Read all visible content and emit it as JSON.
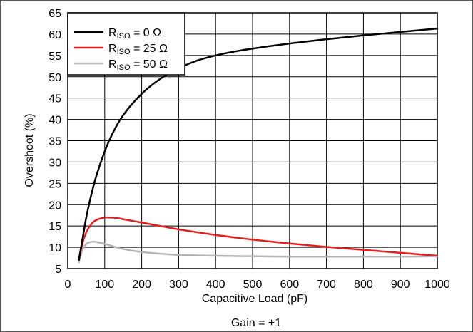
{
  "chart_data": {
    "type": "line",
    "xlabel": "Capacitive Load (pF)",
    "ylabel": "Overshoot (%)",
    "footnote": "Gain = +1",
    "xlim": [
      0,
      1000
    ],
    "ylim": [
      5,
      65
    ],
    "xticks": [
      0,
      100,
      200,
      300,
      400,
      500,
      600,
      700,
      800,
      900,
      1000
    ],
    "yticks": [
      5,
      10,
      15,
      20,
      25,
      30,
      35,
      40,
      45,
      50,
      55,
      60,
      65
    ],
    "grid": true,
    "legend_position": "top-left",
    "series": [
      {
        "name": "R_ISO = 0 Ω",
        "legend": {
          "prefix": "R",
          "sub": "ISO",
          "suffix": " = 0 Ω"
        },
        "color": "#000000",
        "x": [
          30,
          40,
          50,
          60,
          70,
          80,
          100,
          120,
          150,
          200,
          250,
          300,
          350,
          400,
          450,
          500,
          600,
          700,
          800,
          900,
          1000
        ],
        "y": [
          7,
          12,
          17,
          21,
          24.5,
          27.5,
          32.5,
          36.5,
          41,
          46,
          49.5,
          52,
          53.8,
          55,
          55.9,
          56.6,
          57.8,
          58.8,
          59.7,
          60.5,
          61.3
        ]
      },
      {
        "name": "R_ISO = 25 Ω",
        "legend": {
          "prefix": "R",
          "sub": "ISO",
          "suffix": " = 25 Ω"
        },
        "color": "#e81c1c",
        "x": [
          30,
          40,
          50,
          60,
          70,
          80,
          90,
          100,
          110,
          130,
          150,
          200,
          250,
          300,
          400,
          500,
          600,
          700,
          800,
          900,
          1000
        ],
        "y": [
          7,
          11,
          13.5,
          15,
          16,
          16.5,
          16.8,
          17,
          17,
          16.9,
          16.6,
          15.8,
          15,
          14.2,
          12.9,
          11.8,
          10.9,
          10.1,
          9.4,
          8.7,
          8
        ]
      },
      {
        "name": "R_ISO = 50 Ω",
        "legend": {
          "prefix": "R",
          "sub": "ISO",
          "suffix": " = 50 Ω"
        },
        "color": "#b4b4b4",
        "x": [
          30,
          40,
          50,
          60,
          70,
          80,
          100,
          120,
          150,
          200,
          250,
          300,
          350,
          400,
          500,
          600,
          700,
          800,
          900,
          1000
        ],
        "y": [
          6.5,
          9.5,
          10.8,
          11.2,
          11.3,
          11.2,
          10.8,
          10.3,
          9.6,
          8.9,
          8.5,
          8.2,
          8.1,
          8,
          7.9,
          7.8,
          7.8,
          7.8,
          7.8,
          7.9
        ]
      }
    ]
  }
}
